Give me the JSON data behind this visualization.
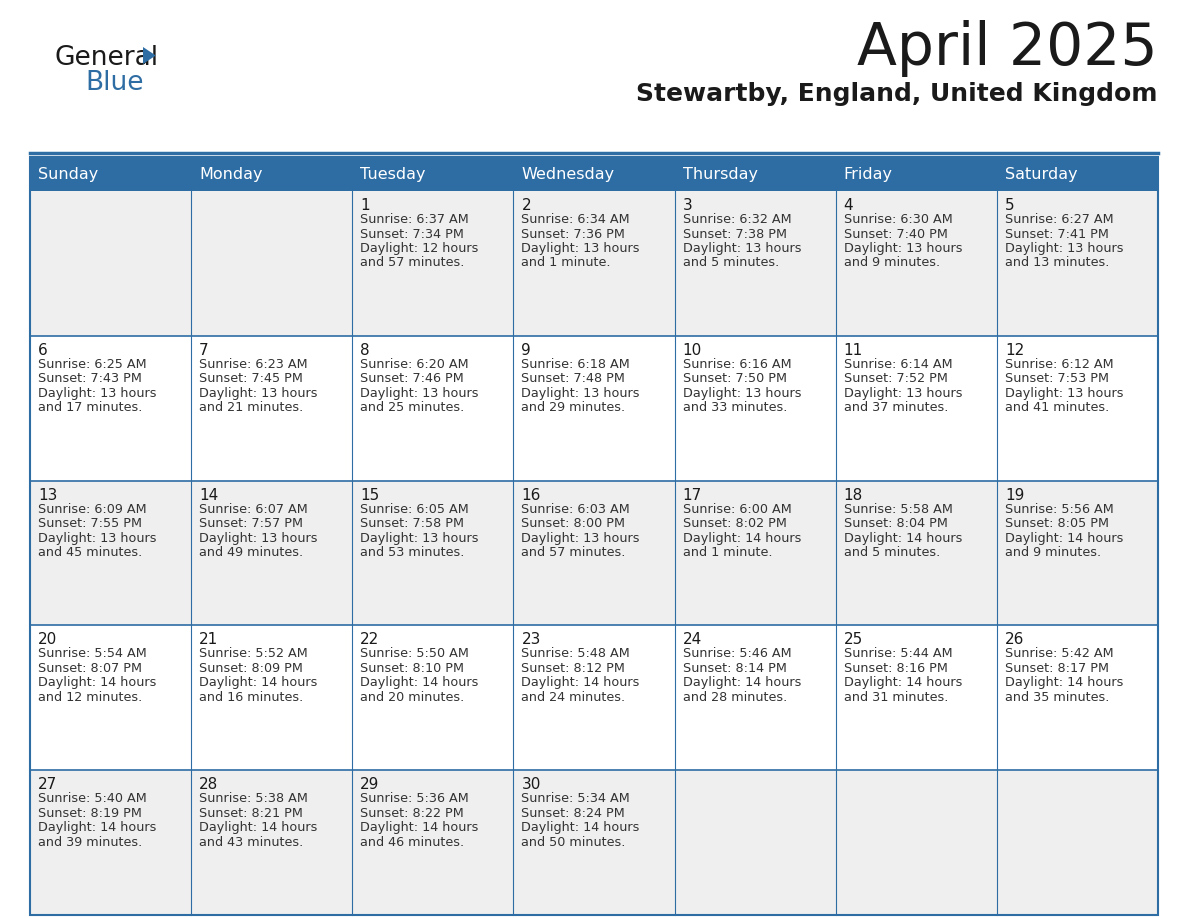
{
  "title": "April 2025",
  "subtitle": "Stewartby, England, United Kingdom",
  "header_color": "#2E6DA4",
  "header_text_color": "#FFFFFF",
  "cell_bg_even": "#EFEFEF",
  "cell_bg_odd": "#FFFFFF",
  "border_color": "#2E6DA4",
  "day_names": [
    "Sunday",
    "Monday",
    "Tuesday",
    "Wednesday",
    "Thursday",
    "Friday",
    "Saturday"
  ],
  "title_color": "#1a1a1a",
  "subtitle_color": "#1a1a1a",
  "cell_text_color": "#333333",
  "day_number_color": "#1a1a1a",
  "logo_text_color": "#1a1a1a",
  "logo_blue_color": "#2E6DA4",
  "days": [
    {
      "date": 1,
      "col": 2,
      "row": 0,
      "sunrise": "6:37 AM",
      "sunset": "7:34 PM",
      "daylight": "12 hours and 57 minutes"
    },
    {
      "date": 2,
      "col": 3,
      "row": 0,
      "sunrise": "6:34 AM",
      "sunset": "7:36 PM",
      "daylight": "13 hours and 1 minute"
    },
    {
      "date": 3,
      "col": 4,
      "row": 0,
      "sunrise": "6:32 AM",
      "sunset": "7:38 PM",
      "daylight": "13 hours and 5 minutes"
    },
    {
      "date": 4,
      "col": 5,
      "row": 0,
      "sunrise": "6:30 AM",
      "sunset": "7:40 PM",
      "daylight": "13 hours and 9 minutes"
    },
    {
      "date": 5,
      "col": 6,
      "row": 0,
      "sunrise": "6:27 AM",
      "sunset": "7:41 PM",
      "daylight": "13 hours and 13 minutes"
    },
    {
      "date": 6,
      "col": 0,
      "row": 1,
      "sunrise": "6:25 AM",
      "sunset": "7:43 PM",
      "daylight": "13 hours and 17 minutes"
    },
    {
      "date": 7,
      "col": 1,
      "row": 1,
      "sunrise": "6:23 AM",
      "sunset": "7:45 PM",
      "daylight": "13 hours and 21 minutes"
    },
    {
      "date": 8,
      "col": 2,
      "row": 1,
      "sunrise": "6:20 AM",
      "sunset": "7:46 PM",
      "daylight": "13 hours and 25 minutes"
    },
    {
      "date": 9,
      "col": 3,
      "row": 1,
      "sunrise": "6:18 AM",
      "sunset": "7:48 PM",
      "daylight": "13 hours and 29 minutes"
    },
    {
      "date": 10,
      "col": 4,
      "row": 1,
      "sunrise": "6:16 AM",
      "sunset": "7:50 PM",
      "daylight": "13 hours and 33 minutes"
    },
    {
      "date": 11,
      "col": 5,
      "row": 1,
      "sunrise": "6:14 AM",
      "sunset": "7:52 PM",
      "daylight": "13 hours and 37 minutes"
    },
    {
      "date": 12,
      "col": 6,
      "row": 1,
      "sunrise": "6:12 AM",
      "sunset": "7:53 PM",
      "daylight": "13 hours and 41 minutes"
    },
    {
      "date": 13,
      "col": 0,
      "row": 2,
      "sunrise": "6:09 AM",
      "sunset": "7:55 PM",
      "daylight": "13 hours and 45 minutes"
    },
    {
      "date": 14,
      "col": 1,
      "row": 2,
      "sunrise": "6:07 AM",
      "sunset": "7:57 PM",
      "daylight": "13 hours and 49 minutes"
    },
    {
      "date": 15,
      "col": 2,
      "row": 2,
      "sunrise": "6:05 AM",
      "sunset": "7:58 PM",
      "daylight": "13 hours and 53 minutes"
    },
    {
      "date": 16,
      "col": 3,
      "row": 2,
      "sunrise": "6:03 AM",
      "sunset": "8:00 PM",
      "daylight": "13 hours and 57 minutes"
    },
    {
      "date": 17,
      "col": 4,
      "row": 2,
      "sunrise": "6:00 AM",
      "sunset": "8:02 PM",
      "daylight": "14 hours and 1 minute"
    },
    {
      "date": 18,
      "col": 5,
      "row": 2,
      "sunrise": "5:58 AM",
      "sunset": "8:04 PM",
      "daylight": "14 hours and 5 minutes"
    },
    {
      "date": 19,
      "col": 6,
      "row": 2,
      "sunrise": "5:56 AM",
      "sunset": "8:05 PM",
      "daylight": "14 hours and 9 minutes"
    },
    {
      "date": 20,
      "col": 0,
      "row": 3,
      "sunrise": "5:54 AM",
      "sunset": "8:07 PM",
      "daylight": "14 hours and 12 minutes"
    },
    {
      "date": 21,
      "col": 1,
      "row": 3,
      "sunrise": "5:52 AM",
      "sunset": "8:09 PM",
      "daylight": "14 hours and 16 minutes"
    },
    {
      "date": 22,
      "col": 2,
      "row": 3,
      "sunrise": "5:50 AM",
      "sunset": "8:10 PM",
      "daylight": "14 hours and 20 minutes"
    },
    {
      "date": 23,
      "col": 3,
      "row": 3,
      "sunrise": "5:48 AM",
      "sunset": "8:12 PM",
      "daylight": "14 hours and 24 minutes"
    },
    {
      "date": 24,
      "col": 4,
      "row": 3,
      "sunrise": "5:46 AM",
      "sunset": "8:14 PM",
      "daylight": "14 hours and 28 minutes"
    },
    {
      "date": 25,
      "col": 5,
      "row": 3,
      "sunrise": "5:44 AM",
      "sunset": "8:16 PM",
      "daylight": "14 hours and 31 minutes"
    },
    {
      "date": 26,
      "col": 6,
      "row": 3,
      "sunrise": "5:42 AM",
      "sunset": "8:17 PM",
      "daylight": "14 hours and 35 minutes"
    },
    {
      "date": 27,
      "col": 0,
      "row": 4,
      "sunrise": "5:40 AM",
      "sunset": "8:19 PM",
      "daylight": "14 hours and 39 minutes"
    },
    {
      "date": 28,
      "col": 1,
      "row": 4,
      "sunrise": "5:38 AM",
      "sunset": "8:21 PM",
      "daylight": "14 hours and 43 minutes"
    },
    {
      "date": 29,
      "col": 2,
      "row": 4,
      "sunrise": "5:36 AM",
      "sunset": "8:22 PM",
      "daylight": "14 hours and 46 minutes"
    },
    {
      "date": 30,
      "col": 3,
      "row": 4,
      "sunrise": "5:34 AM",
      "sunset": "8:24 PM",
      "daylight": "14 hours and 50 minutes"
    }
  ]
}
